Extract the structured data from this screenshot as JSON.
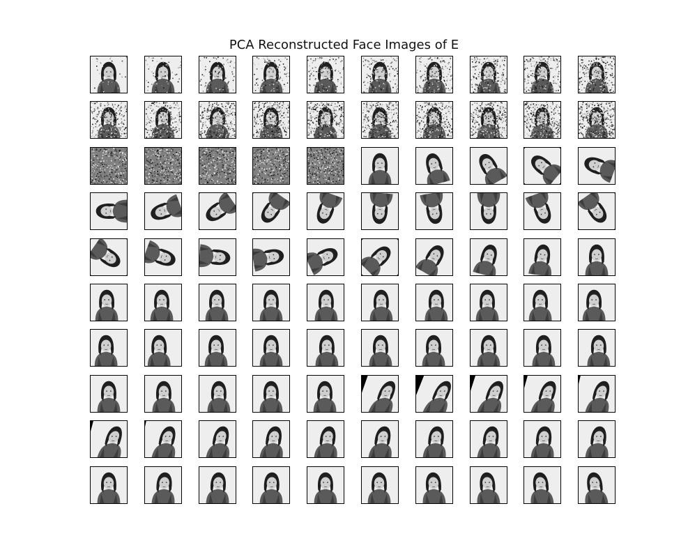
{
  "title": "PCA Reconstructed Face Images of E",
  "grid": {
    "rows": 10,
    "cols": 10
  },
  "tiles": [
    {
      "t": "noise",
      "level": 0.08
    },
    {
      "t": "noise",
      "level": 0.16
    },
    {
      "t": "noise",
      "level": 0.22
    },
    {
      "t": "noise",
      "level": 0.28
    },
    {
      "t": "noise",
      "level": 0.34
    },
    {
      "t": "noise",
      "level": 0.4
    },
    {
      "t": "noise",
      "level": 0.46
    },
    {
      "t": "noise",
      "level": 0.52
    },
    {
      "t": "noise",
      "level": 0.58
    },
    {
      "t": "noise",
      "level": 0.64
    },
    {
      "t": "noise",
      "level": 0.7
    },
    {
      "t": "noise",
      "level": 0.74
    },
    {
      "t": "noise",
      "level": 0.78
    },
    {
      "t": "noise",
      "level": 0.81
    },
    {
      "t": "noise",
      "level": 0.84
    },
    {
      "t": "noise",
      "level": 0.87
    },
    {
      "t": "noise",
      "level": 0.9
    },
    {
      "t": "noise",
      "level": 0.92
    },
    {
      "t": "noise",
      "level": 0.95
    },
    {
      "t": "noise",
      "level": 0.97
    },
    {
      "t": "noise",
      "level": 1.0
    },
    {
      "t": "noise",
      "level": 1.0
    },
    {
      "t": "noise",
      "level": 1.0
    },
    {
      "t": "noise",
      "level": 1.0
    },
    {
      "t": "noise",
      "level": 1.0
    },
    {
      "t": "rot",
      "deg": 0
    },
    {
      "t": "rot",
      "deg": -15
    },
    {
      "t": "rot",
      "deg": -30
    },
    {
      "t": "rot",
      "deg": -50
    },
    {
      "t": "rot",
      "deg": -70
    },
    {
      "t": "rot",
      "deg": -90
    },
    {
      "t": "rot",
      "deg": -110
    },
    {
      "t": "rot",
      "deg": -125
    },
    {
      "t": "rot",
      "deg": -145
    },
    {
      "t": "rot",
      "deg": -160
    },
    {
      "t": "rot",
      "deg": -175
    },
    {
      "t": "rot",
      "deg": 170
    },
    {
      "t": "rot",
      "deg": 180
    },
    {
      "t": "rot",
      "deg": 160
    },
    {
      "t": "rot",
      "deg": 145
    },
    {
      "t": "rot",
      "deg": 125
    },
    {
      "t": "rot",
      "deg": 110
    },
    {
      "t": "rot",
      "deg": 95
    },
    {
      "t": "rot",
      "deg": 80
    },
    {
      "t": "rot",
      "deg": 65
    },
    {
      "t": "rot",
      "deg": 45
    },
    {
      "t": "rot",
      "deg": 30
    },
    {
      "t": "rot",
      "deg": 15
    },
    {
      "t": "rot",
      "deg": 8
    },
    {
      "t": "rot",
      "deg": 0
    },
    {
      "t": "shift",
      "dx": -3
    },
    {
      "t": "shift",
      "dx": -2
    },
    {
      "t": "shift",
      "dx": -1
    },
    {
      "t": "shift",
      "dx": 0
    },
    {
      "t": "shift",
      "dx": 1
    },
    {
      "t": "shift",
      "dx": 2
    },
    {
      "t": "shift",
      "dx": 3
    },
    {
      "t": "shift",
      "dx": -2
    },
    {
      "t": "shift",
      "dx": -3
    },
    {
      "t": "shift",
      "dx": -4
    },
    {
      "t": "shift",
      "dx": -4
    },
    {
      "t": "shift",
      "dx": -6
    },
    {
      "t": "shift",
      "dx": -2
    },
    {
      "t": "shift",
      "dx": 0
    },
    {
      "t": "shift",
      "dx": 2
    },
    {
      "t": "shift",
      "dx": 1
    },
    {
      "t": "shift",
      "dx": -1
    },
    {
      "t": "shift",
      "dx": 0
    },
    {
      "t": "shift",
      "dx": 2
    },
    {
      "t": "shift",
      "dx": 3
    },
    {
      "t": "shift",
      "dx": 0
    },
    {
      "t": "shift",
      "dx": 1
    },
    {
      "t": "shift",
      "dx": 2
    },
    {
      "t": "shift",
      "dx": 0
    },
    {
      "t": "shift",
      "dx": -1
    },
    {
      "t": "shear",
      "k": 0.35
    },
    {
      "t": "shear",
      "k": 0.4
    },
    {
      "t": "shear",
      "k": 0.32
    },
    {
      "t": "shear",
      "k": 0.28
    },
    {
      "t": "shear",
      "k": 0.24
    },
    {
      "t": "shear",
      "k": 0.26
    },
    {
      "t": "shear",
      "k": 0.22
    },
    {
      "t": "shear",
      "k": 0.18
    },
    {
      "t": "shear",
      "k": 0.14
    },
    {
      "t": "shear",
      "k": 0.12
    },
    {
      "t": "shear",
      "k": 0.15
    },
    {
      "t": "shear",
      "k": 0.1
    },
    {
      "t": "shear",
      "k": 0.12
    },
    {
      "t": "shear",
      "k": 0.08
    },
    {
      "t": "shear",
      "k": 0.1
    },
    {
      "t": "shift",
      "dx": 0
    },
    {
      "t": "shear",
      "k": 0.06
    },
    {
      "t": "shear",
      "k": 0.04
    },
    {
      "t": "shear",
      "k": 0.03
    },
    {
      "t": "shift",
      "dx": 0
    },
    {
      "t": "shift",
      "dx": -1
    },
    {
      "t": "shear",
      "k": -0.04
    },
    {
      "t": "shear",
      "k": -0.06
    },
    {
      "t": "shear",
      "k": -0.08
    },
    {
      "t": "shear",
      "k": -0.1
    }
  ],
  "colors": {
    "background": "#ffffff",
    "frame": "#000000",
    "photo_bg": "#e6e6e6"
  }
}
